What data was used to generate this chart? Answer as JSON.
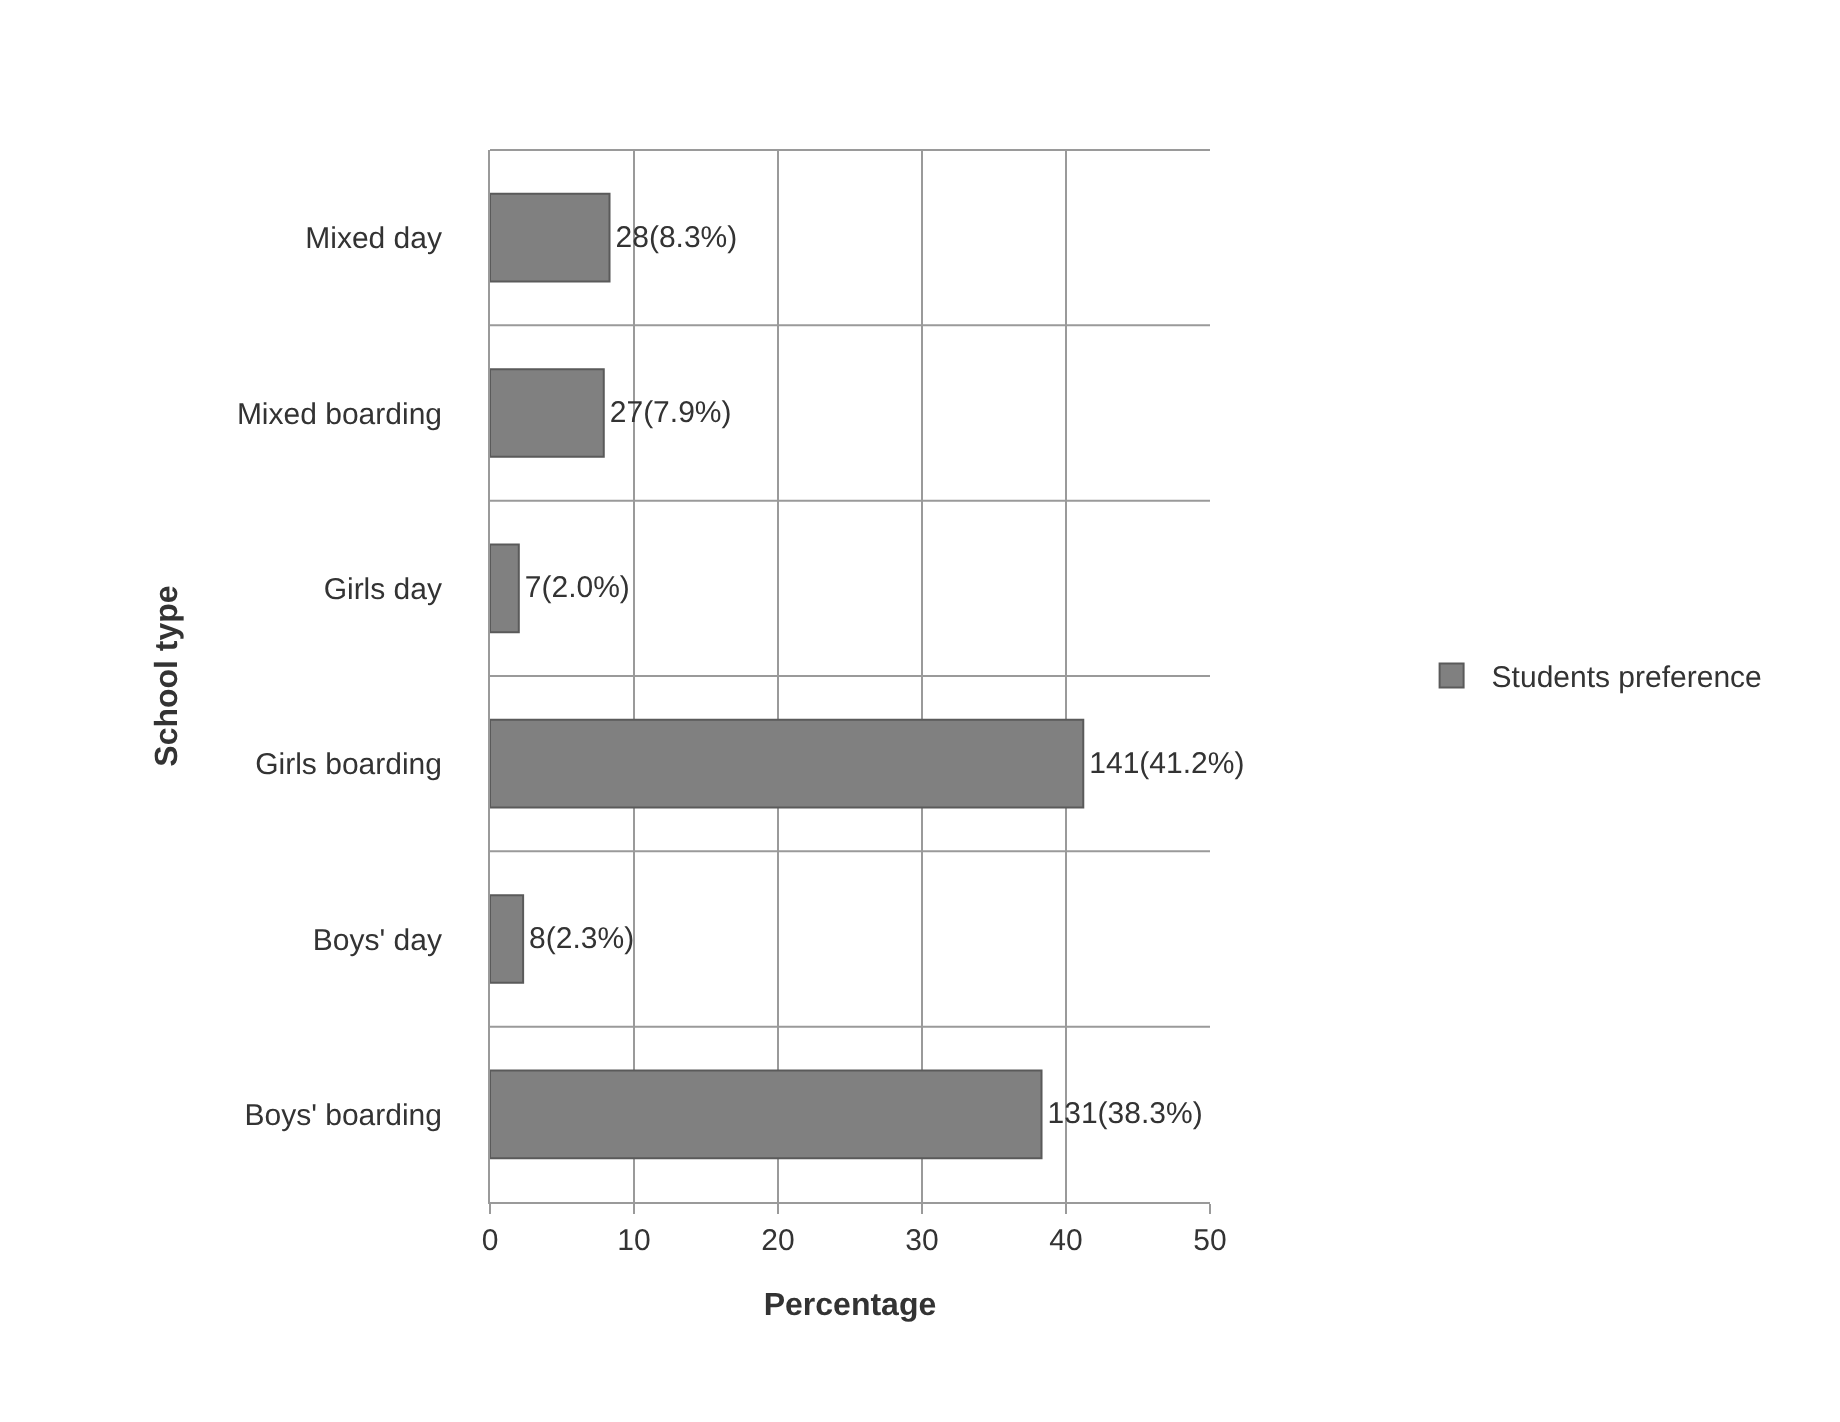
{
  "chart_data": {
    "type": "bar",
    "orientation": "horizontal",
    "xlabel": "Percentage",
    "ylabel": "School type",
    "categories": [
      "Mixed day",
      "Mixed boarding",
      "Girls day",
      "Girls boarding",
      "Boys' day",
      "Boys' boarding"
    ],
    "series": [
      {
        "name": "Students preference",
        "color": "#808080",
        "values": [
          8.3,
          7.9,
          2.0,
          41.2,
          2.3,
          38.3
        ],
        "value_labels": [
          "28(8.3%)",
          "27(7.9%)",
          "7(2.0%)",
          "141(41.2%)",
          "8(2.3%)",
          "131(38.3%)"
        ]
      }
    ],
    "xlim": [
      0,
      50
    ],
    "xticks": [
      0,
      10,
      20,
      30,
      40,
      50
    ],
    "grid": true,
    "legend": "right"
  }
}
